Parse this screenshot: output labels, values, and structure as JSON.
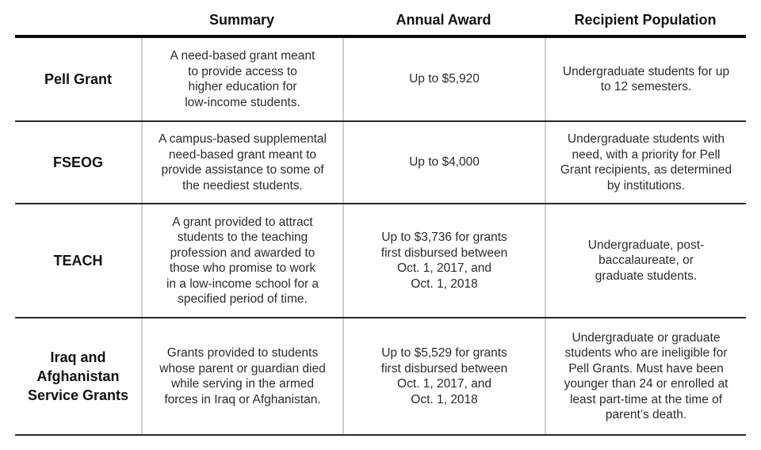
{
  "table": {
    "headers": [
      "",
      "Summary",
      "Annual Award",
      "Recipient Population"
    ],
    "rows": [
      {
        "name": "Pell Grant",
        "summary": "A need-based grant meant\nto provide access to\nhigher education for\nlow-income students.",
        "award": "Up to $5,920",
        "population": "Undergraduate students for up\nto 12 semesters."
      },
      {
        "name": "FSEOG",
        "summary": "A campus-based supplemental\nneed-based grant meant to\nprovide assistance to some of\nthe neediest students.",
        "award": "Up to $4,000",
        "population": "Undergraduate students with\nneed, with a priority for Pell\nGrant recipients, as determined\nby institutions."
      },
      {
        "name": "TEACH",
        "summary": "A grant provided to attract\nstudents to the teaching\nprofession and awarded to\nthose who promise to work\nin a low-income school for a\nspecified period of time.",
        "award": "Up to $3,736 for grants\nfirst disbursed between\nOct. 1, 2017, and\nOct. 1, 2018",
        "population": "Undergraduate, post-\nbaccalaureate, or\ngraduate students."
      },
      {
        "name": "Iraq and\nAfghanistan\nService Grants",
        "summary": "Grants provided to students\nwhose parent or guardian died\nwhile serving in the armed\nforces in Iraq or Afghanistan.",
        "award": "Up to $5,529 for grants\nfirst disbursed between\nOct. 1, 2017, and\nOct. 1, 2018",
        "population": "Undergraduate or graduate\nstudents who are ineligible for\nPell Grants. Must have been\nyounger than 24 or enrolled at\nleast part-time at the time of\nparent’s death."
      }
    ]
  },
  "colors": {
    "header_rule": "#0d0d0d",
    "row_rule": "#2a2a2a",
    "column_divider": "#cfcfcf",
    "text": "#2b2b2b"
  }
}
